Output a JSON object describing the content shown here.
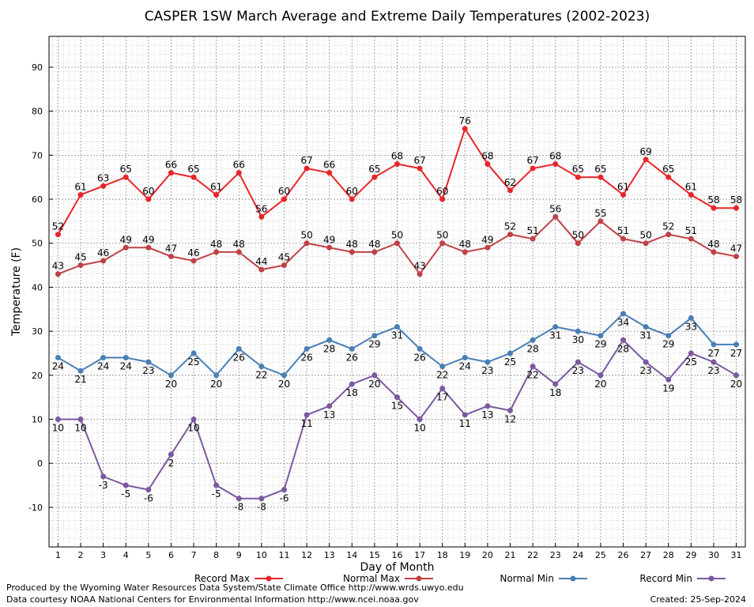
{
  "footer": {
    "credit1": "Produced by the Wyoming Water Resources Data System/State Climate Office http://www.wrds.uwyo.edu",
    "credit2": "Data courtesy NOAA National Centers for Environmental Information http://www.ncei.noaa.gov",
    "created": "Created:  25-Sep-2024"
  },
  "chart_data": {
    "type": "line",
    "title": "CASPER 1SW March Average and Extreme Daily Temperatures (2002-2023)",
    "xlabel": "Day of Month",
    "ylabel": "Temperature (F)",
    "x": [
      1,
      2,
      3,
      4,
      5,
      6,
      7,
      8,
      9,
      10,
      11,
      12,
      13,
      14,
      15,
      16,
      17,
      18,
      19,
      20,
      21,
      22,
      23,
      24,
      25,
      26,
      27,
      28,
      29,
      30,
      31
    ],
    "xlim": [
      0.6,
      31.4
    ],
    "ylim": [
      -19,
      97
    ],
    "yticks": [
      -10,
      0,
      10,
      20,
      30,
      40,
      50,
      60,
      70,
      80,
      90
    ],
    "grid": true,
    "legend_position": "bottom",
    "series": [
      {
        "name": "Record Max",
        "color": "#e8252a",
        "label_position": "above",
        "values": [
          52,
          61,
          63,
          65,
          60,
          66,
          65,
          61,
          66,
          56,
          60,
          67,
          66,
          60,
          65,
          68,
          67,
          60,
          76,
          68,
          62,
          67,
          68,
          65,
          65,
          61,
          69,
          65,
          61,
          58,
          58
        ]
      },
      {
        "name": "Normal Max",
        "color": "#bf4146",
        "label_position": "above",
        "values": [
          43,
          45,
          46,
          49,
          49,
          47,
          46,
          48,
          48,
          44,
          45,
          50,
          49,
          48,
          48,
          50,
          43,
          50,
          48,
          49,
          52,
          51,
          56,
          50,
          55,
          51,
          50,
          52,
          51,
          48,
          47
        ]
      },
      {
        "name": "Normal Min",
        "color": "#4a7fb5",
        "label_position": "below",
        "values": [
          24,
          21,
          24,
          24,
          23,
          20,
          25,
          20,
          26,
          22,
          20,
          26,
          28,
          26,
          29,
          31,
          26,
          22,
          24,
          23,
          25,
          28,
          31,
          30,
          29,
          34,
          31,
          29,
          33,
          27,
          27
        ]
      },
      {
        "name": "Record Min",
        "color": "#7b58a0",
        "label_position": "below",
        "values": [
          10,
          10,
          -3,
          -5,
          -6,
          2,
          10,
          -5,
          -8,
          -8,
          -6,
          11,
          13,
          18,
          20,
          15,
          10,
          17,
          11,
          13,
          12,
          22,
          18,
          23,
          20,
          28,
          23,
          19,
          25,
          23,
          20
        ]
      }
    ]
  }
}
